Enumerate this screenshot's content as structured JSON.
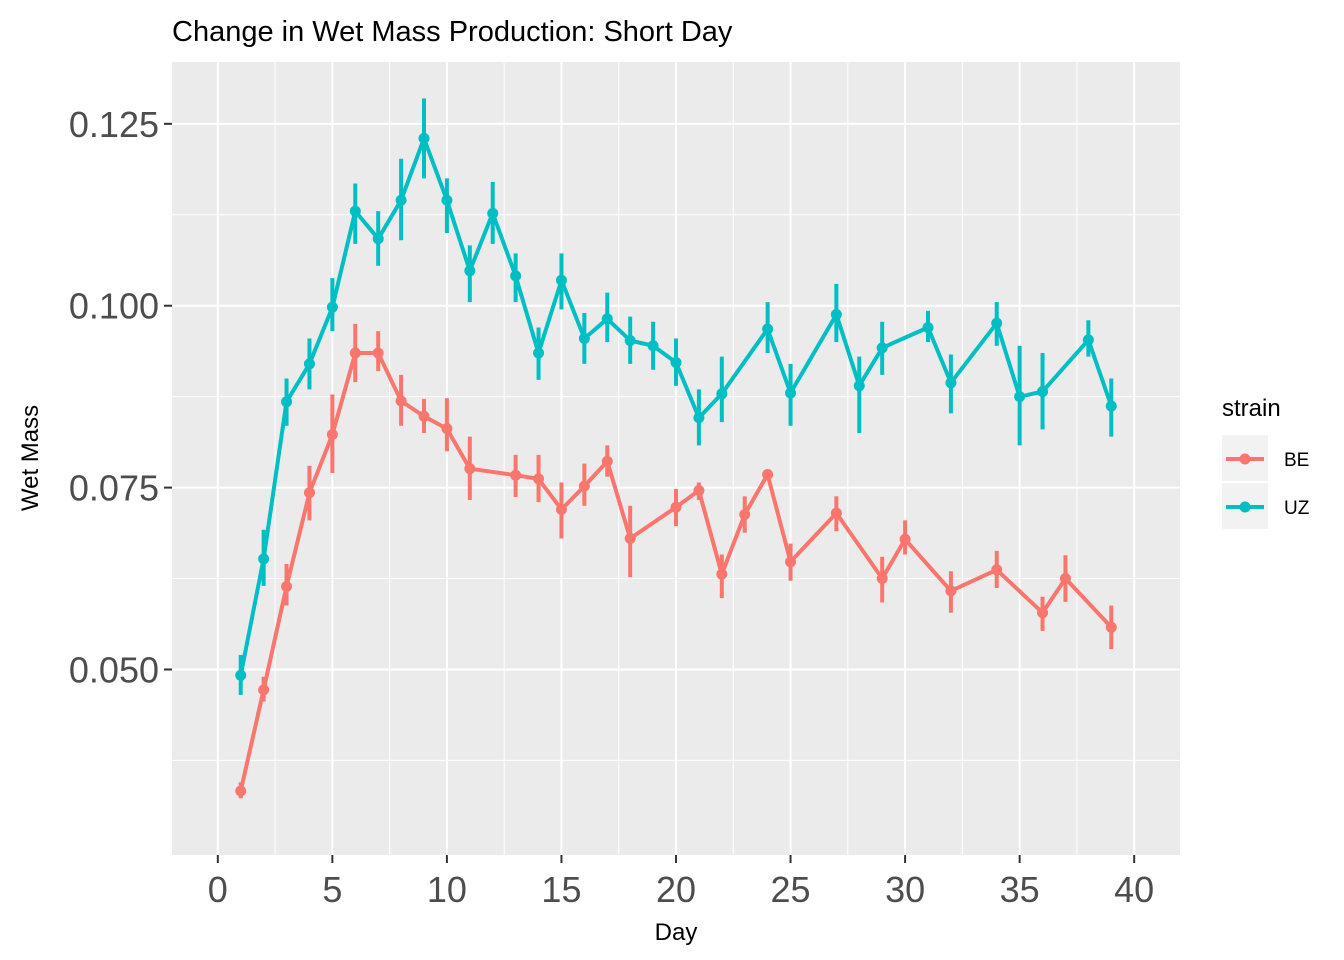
{
  "chart_data": {
    "type": "line",
    "title": "Change in Wet Mass Production: Short Day",
    "xlabel": "Day",
    "ylabel": "Wet Mass",
    "xlim": [
      -2,
      42
    ],
    "ylim": [
      0.0245,
      0.1335
    ],
    "x_ticks": [
      0,
      5,
      10,
      15,
      20,
      25,
      30,
      35,
      40
    ],
    "y_ticks": [
      0.05,
      0.075,
      0.1,
      0.125
    ],
    "y_tick_labels": [
      "0.050",
      "0.075",
      "0.100",
      "0.125"
    ],
    "grid": true,
    "legend": {
      "title": "strain",
      "position": "right"
    },
    "series": [
      {
        "name": "BE",
        "color": "#F8766D",
        "x": [
          1,
          2,
          3,
          4,
          5,
          6,
          7,
          8,
          9,
          10,
          11,
          13,
          14,
          15,
          16,
          17,
          18,
          20,
          21,
          22,
          23,
          24,
          25,
          27,
          29,
          30,
          32,
          34,
          36,
          37,
          39
        ],
        "y": [
          0.0333,
          0.0472,
          0.0614,
          0.0743,
          0.0823,
          0.0935,
          0.0935,
          0.0869,
          0.0848,
          0.0831,
          0.0776,
          0.0767,
          0.0762,
          0.072,
          0.0752,
          0.0786,
          0.068,
          0.0723,
          0.0746,
          0.0631,
          0.0713,
          0.0768,
          0.0648,
          0.0715,
          0.0625,
          0.0679,
          0.0608,
          0.0637,
          0.0578,
          0.0625,
          0.0558
        ],
        "err_low": [
          0.0323,
          0.0456,
          0.0588,
          0.0705,
          0.077,
          0.0895,
          0.091,
          0.0835,
          0.0825,
          0.08,
          0.0733,
          0.0737,
          0.073,
          0.068,
          0.0725,
          0.0765,
          0.0627,
          0.0697,
          0.0733,
          0.0598,
          0.0688,
          0.076,
          0.0622,
          0.069,
          0.0592,
          0.0658,
          0.0578,
          0.0612,
          0.0553,
          0.0593,
          0.0528
        ],
        "err_high": [
          0.0345,
          0.049,
          0.0645,
          0.078,
          0.0878,
          0.0975,
          0.0965,
          0.0905,
          0.0872,
          0.0873,
          0.082,
          0.0795,
          0.0795,
          0.0757,
          0.0783,
          0.0808,
          0.0725,
          0.0748,
          0.0757,
          0.0658,
          0.0738,
          0.0775,
          0.0673,
          0.0738,
          0.0655,
          0.0705,
          0.0635,
          0.0663,
          0.06,
          0.0657,
          0.0588
        ]
      },
      {
        "name": "UZ",
        "color": "#00BFC4",
        "x": [
          1,
          2,
          3,
          4,
          5,
          6,
          7,
          8,
          9,
          10,
          11,
          12,
          13,
          14,
          15,
          16,
          17,
          18,
          19,
          20,
          21,
          22,
          24,
          25,
          27,
          28,
          29,
          31,
          32,
          34,
          35,
          36,
          38,
          39
        ],
        "y": [
          0.0492,
          0.0652,
          0.0868,
          0.092,
          0.0998,
          0.113,
          0.1092,
          0.1145,
          0.123,
          0.1145,
          0.1048,
          0.1127,
          0.1041,
          0.0935,
          0.1035,
          0.0955,
          0.0982,
          0.0952,
          0.0945,
          0.0922,
          0.0846,
          0.0879,
          0.0968,
          0.088,
          0.0988,
          0.089,
          0.0942,
          0.097,
          0.0894,
          0.0976,
          0.0875,
          0.0882,
          0.0953,
          0.0862
        ],
        "err_low": [
          0.0465,
          0.0615,
          0.0835,
          0.0885,
          0.0965,
          0.1085,
          0.1055,
          0.109,
          0.1175,
          0.11,
          0.1005,
          0.1085,
          0.1005,
          0.0898,
          0.0995,
          0.092,
          0.095,
          0.092,
          0.0912,
          0.089,
          0.0808,
          0.084,
          0.0935,
          0.0835,
          0.095,
          0.0825,
          0.0905,
          0.095,
          0.0852,
          0.0945,
          0.0808,
          0.083,
          0.093,
          0.082
        ],
        "err_high": [
          0.052,
          0.0692,
          0.09,
          0.0955,
          0.1038,
          0.1168,
          0.113,
          0.1202,
          0.1285,
          0.1175,
          0.1083,
          0.117,
          0.1072,
          0.097,
          0.1072,
          0.099,
          0.1018,
          0.0985,
          0.0978,
          0.0955,
          0.0885,
          0.093,
          0.1005,
          0.092,
          0.103,
          0.093,
          0.0978,
          0.0993,
          0.0933,
          0.1005,
          0.0945,
          0.0935,
          0.098,
          0.09
        ]
      }
    ]
  }
}
